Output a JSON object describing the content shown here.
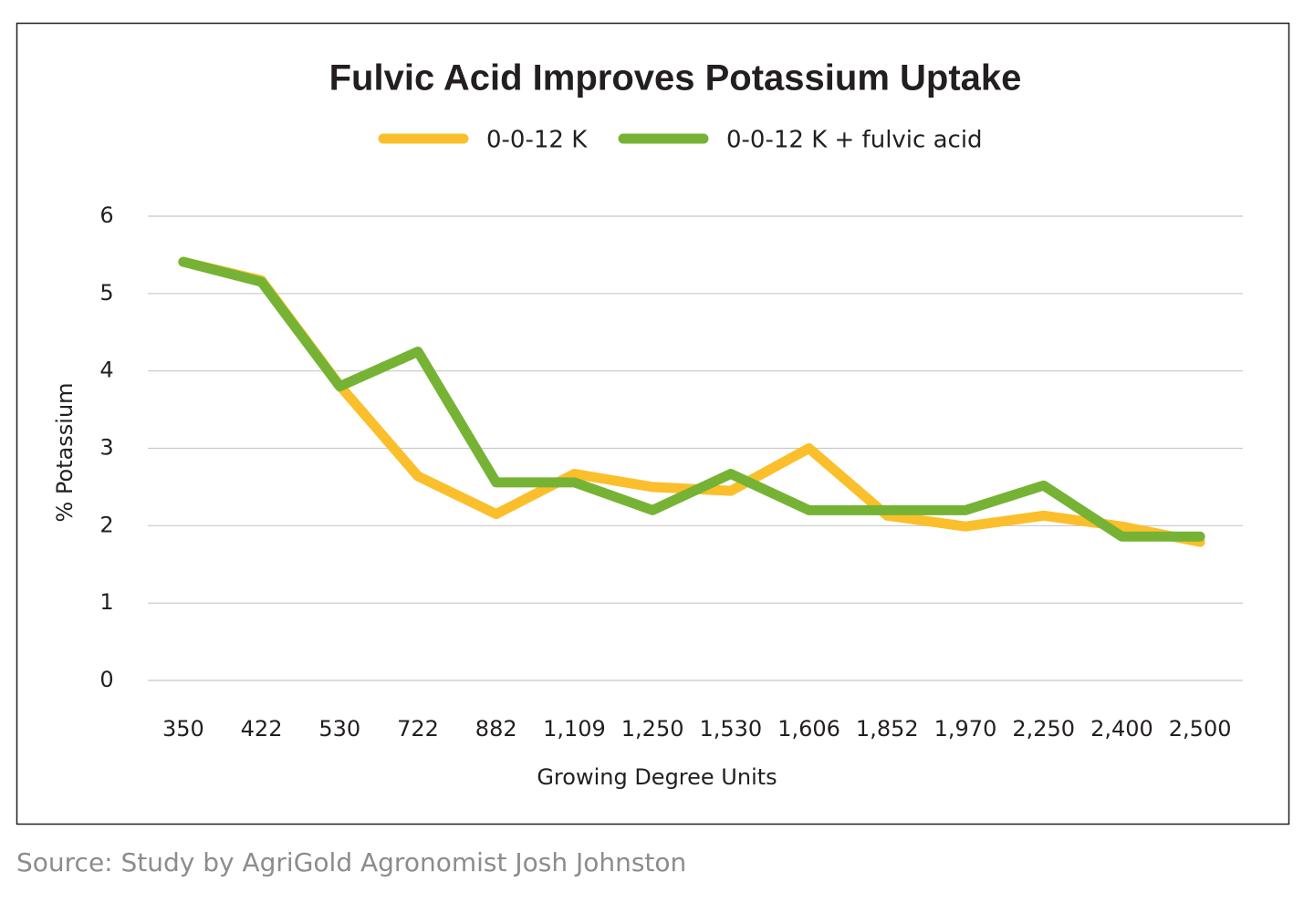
{
  "chart_data": {
    "type": "line",
    "title": "Fulvic Acid Improves Potassium Uptake",
    "x_label": "Growing Degree Units",
    "y_label": "% Potassium",
    "source": "Source: Study by AgriGold Agronomist Josh Johnston",
    "categories": [
      "350",
      "422",
      "530",
      "722",
      "882",
      "1,109",
      "1,250",
      "1,530",
      "1,606",
      "1,852",
      "1,970",
      "2,250",
      "2,400",
      "2,500"
    ],
    "series": [
      {
        "name": "0-0-12 K",
        "color": "#fbbf2c",
        "values": [
          5.41,
          5.17,
          3.81,
          2.64,
          2.15,
          2.67,
          2.5,
          2.45,
          3.0,
          2.13,
          1.99,
          2.13,
          1.99,
          1.79
        ]
      },
      {
        "name": "0-0-12 K + fulvic acid",
        "color": "#76b335",
        "values": [
          5.41,
          5.15,
          3.8,
          4.25,
          2.56,
          2.56,
          2.2,
          2.67,
          2.2,
          2.2,
          2.2,
          2.52,
          1.86,
          1.86
        ]
      }
    ],
    "ylim": [
      0,
      6
    ],
    "yticks": [
      0,
      1,
      2,
      3,
      4,
      5,
      6
    ],
    "grid": true,
    "legend": "top"
  }
}
